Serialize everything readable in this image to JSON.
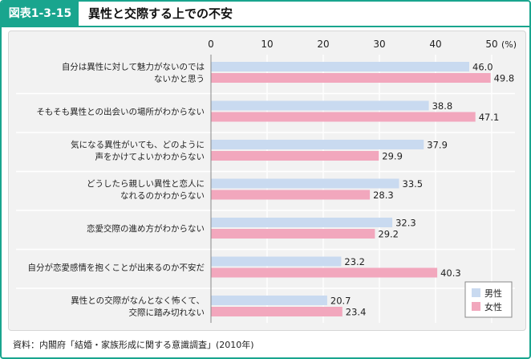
{
  "header": {
    "figure_label": "図表1-3-15",
    "title": "異性と交際する上での不安"
  },
  "source_note": "資料：内閣府「結婚・家族形成に関する意識調査」(2010年)",
  "colors": {
    "accent": "#19a58e",
    "male": "#c9daf0",
    "female": "#f2a7bd"
  },
  "chart_data": {
    "type": "bar",
    "orientation": "horizontal",
    "unit": "(%)",
    "xlim": [
      0,
      50
    ],
    "ticks": [
      0,
      10,
      20,
      30,
      40,
      50
    ],
    "categories": [
      [
        "自分は異性に対して魅力がないのでは",
        "ないかと思う"
      ],
      [
        "そもそも異性との出会いの場所がわからない"
      ],
      [
        "気になる異性がいても、どのように",
        "声をかけてよいかわからない"
      ],
      [
        "どうしたら親しい異性と恋人に",
        "なれるのかわからない"
      ],
      [
        "恋愛交際の進め方がわからない"
      ],
      [
        "自分が恋愛感情を抱くことが出来るのか不安だ"
      ],
      [
        "異性との交際がなんとなく怖くて、",
        "交際に踏み切れない"
      ]
    ],
    "series": [
      {
        "name": "男性",
        "color": "#c9daf0",
        "values": [
          46.0,
          38.8,
          37.9,
          33.5,
          32.3,
          23.2,
          20.7
        ]
      },
      {
        "name": "女性",
        "color": "#f2a7bd",
        "values": [
          49.8,
          47.1,
          29.9,
          28.3,
          29.2,
          40.3,
          23.4
        ]
      }
    ],
    "legend_position": "bottom-right"
  }
}
